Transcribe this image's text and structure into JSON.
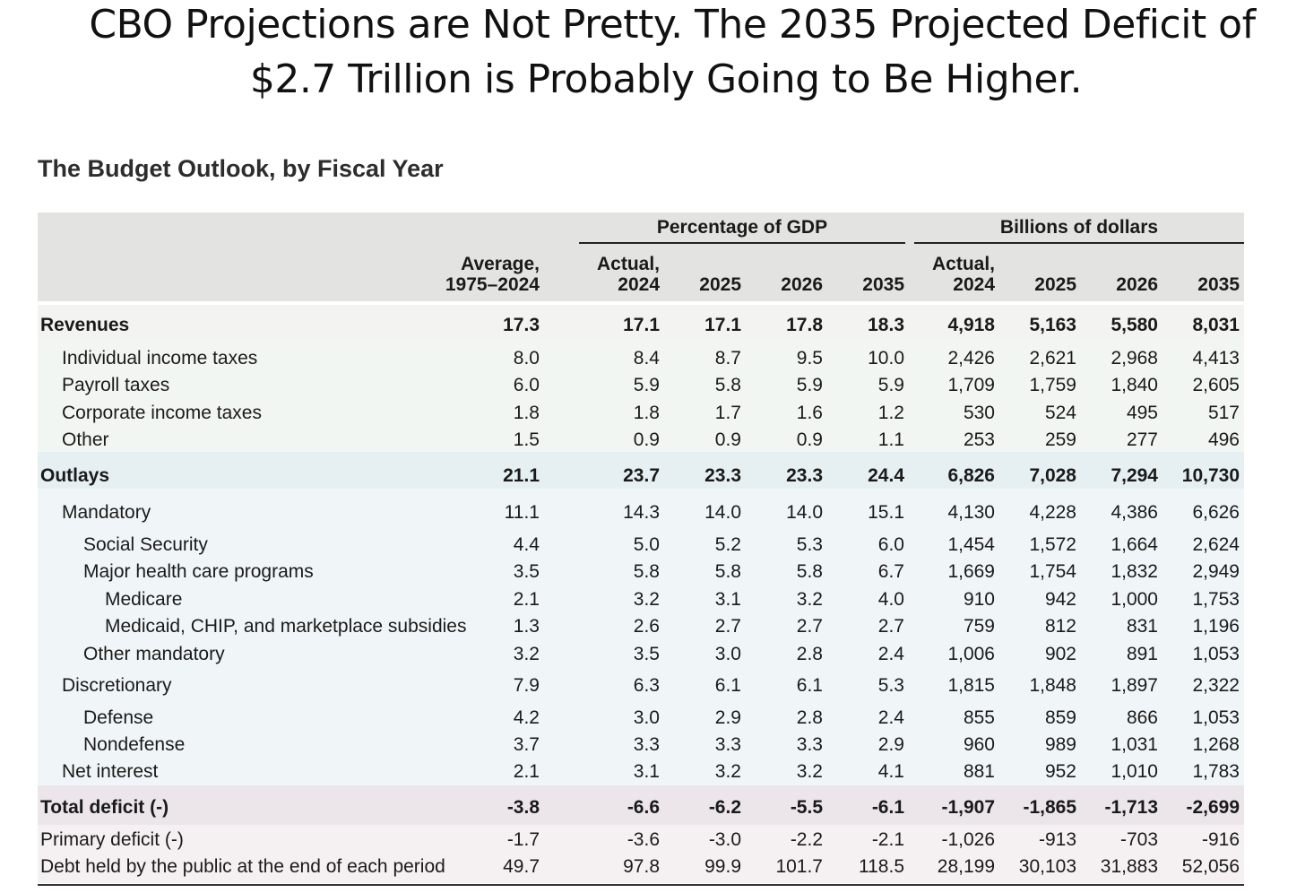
{
  "headline": {
    "line1": "CBO Projections are Not Pretty. The 2035 Projected Deficit of",
    "line2": "$2.7 Trillion is Probably Going to Be Higher."
  },
  "subtitle": "The Budget Outlook, by Fiscal Year",
  "groups": {
    "pct": "Percentage of GDP",
    "dollars": "Billions of dollars"
  },
  "columns": [
    "Average,\n1975–2024",
    "Actual,\n2024",
    "2025",
    "2026",
    "2035",
    "Actual,\n2024",
    "2025",
    "2026",
    "2035"
  ],
  "rows": [
    {
      "label": "Revenues",
      "values": [
        "17.3",
        "17.1",
        "17.1",
        "17.8",
        "18.3",
        "4,918",
        "5,163",
        "5,580",
        "8,031"
      ]
    },
    {
      "label": "Individual income taxes",
      "values": [
        "8.0",
        "8.4",
        "8.7",
        "9.5",
        "10.0",
        "2,426",
        "2,621",
        "2,968",
        "4,413"
      ]
    },
    {
      "label": "Payroll taxes",
      "values": [
        "6.0",
        "5.9",
        "5.8",
        "5.9",
        "5.9",
        "1,709",
        "1,759",
        "1,840",
        "2,605"
      ]
    },
    {
      "label": "Corporate income taxes",
      "values": [
        "1.8",
        "1.8",
        "1.7",
        "1.6",
        "1.2",
        "530",
        "524",
        "495",
        "517"
      ]
    },
    {
      "label": "Other",
      "values": [
        "1.5",
        "0.9",
        "0.9",
        "0.9",
        "1.1",
        "253",
        "259",
        "277",
        "496"
      ]
    },
    {
      "label": "Outlays",
      "values": [
        "21.1",
        "23.7",
        "23.3",
        "23.3",
        "24.4",
        "6,826",
        "7,028",
        "7,294",
        "10,730"
      ]
    },
    {
      "label": "Mandatory",
      "values": [
        "11.1",
        "14.3",
        "14.0",
        "14.0",
        "15.1",
        "4,130",
        "4,228",
        "4,386",
        "6,626"
      ]
    },
    {
      "label": "Social Security",
      "values": [
        "4.4",
        "5.0",
        "5.2",
        "5.3",
        "6.0",
        "1,454",
        "1,572",
        "1,664",
        "2,624"
      ]
    },
    {
      "label": "Major health care programs",
      "values": [
        "3.5",
        "5.8",
        "5.8",
        "5.8",
        "6.7",
        "1,669",
        "1,754",
        "1,832",
        "2,949"
      ]
    },
    {
      "label": "Medicare",
      "values": [
        "2.1",
        "3.2",
        "3.1",
        "3.2",
        "4.0",
        "910",
        "942",
        "1,000",
        "1,753"
      ]
    },
    {
      "label": "Medicaid, CHIP, and marketplace subsidies",
      "values": [
        "1.3",
        "2.6",
        "2.7",
        "2.7",
        "2.7",
        "759",
        "812",
        "831",
        "1,196"
      ]
    },
    {
      "label": "Other mandatory",
      "values": [
        "3.2",
        "3.5",
        "3.0",
        "2.8",
        "2.4",
        "1,006",
        "902",
        "891",
        "1,053"
      ]
    },
    {
      "label": "Discretionary",
      "values": [
        "7.9",
        "6.3",
        "6.1",
        "6.1",
        "5.3",
        "1,815",
        "1,848",
        "1,897",
        "2,322"
      ]
    },
    {
      "label": "Defense",
      "values": [
        "4.2",
        "3.0",
        "2.9",
        "2.8",
        "2.4",
        "855",
        "859",
        "866",
        "1,053"
      ]
    },
    {
      "label": "Nondefense",
      "values": [
        "3.7",
        "3.3",
        "3.3",
        "3.3",
        "2.9",
        "960",
        "989",
        "1,031",
        "1,268"
      ]
    },
    {
      "label": "Net interest",
      "values": [
        "2.1",
        "3.1",
        "3.2",
        "3.2",
        "4.1",
        "881",
        "952",
        "1,010",
        "1,783"
      ]
    },
    {
      "label": "Total deficit (-)",
      "values": [
        "-3.8",
        "-6.6",
        "-6.2",
        "-5.5",
        "-6.1",
        "-1,907",
        "-1,865",
        "-1,713",
        "-2,699"
      ]
    },
    {
      "label": "Primary deficit (-)",
      "values": [
        "-1.7",
        "-3.6",
        "-3.0",
        "-2.2",
        "-2.1",
        "-1,026",
        "-913",
        "-703",
        "-916"
      ]
    },
    {
      "label": "Debt held by the public at the end of each period",
      "values": [
        "49.7",
        "97.8",
        "99.9",
        "101.7",
        "118.5",
        "28,199",
        "30,103",
        "31,883",
        "52,056"
      ]
    }
  ],
  "colors": {
    "header_bg": "#e3e3e1",
    "revenues_band": "#f2f6f3",
    "outlays_band": "#f0f6f7",
    "deficit_band": "#f5f1f3"
  }
}
